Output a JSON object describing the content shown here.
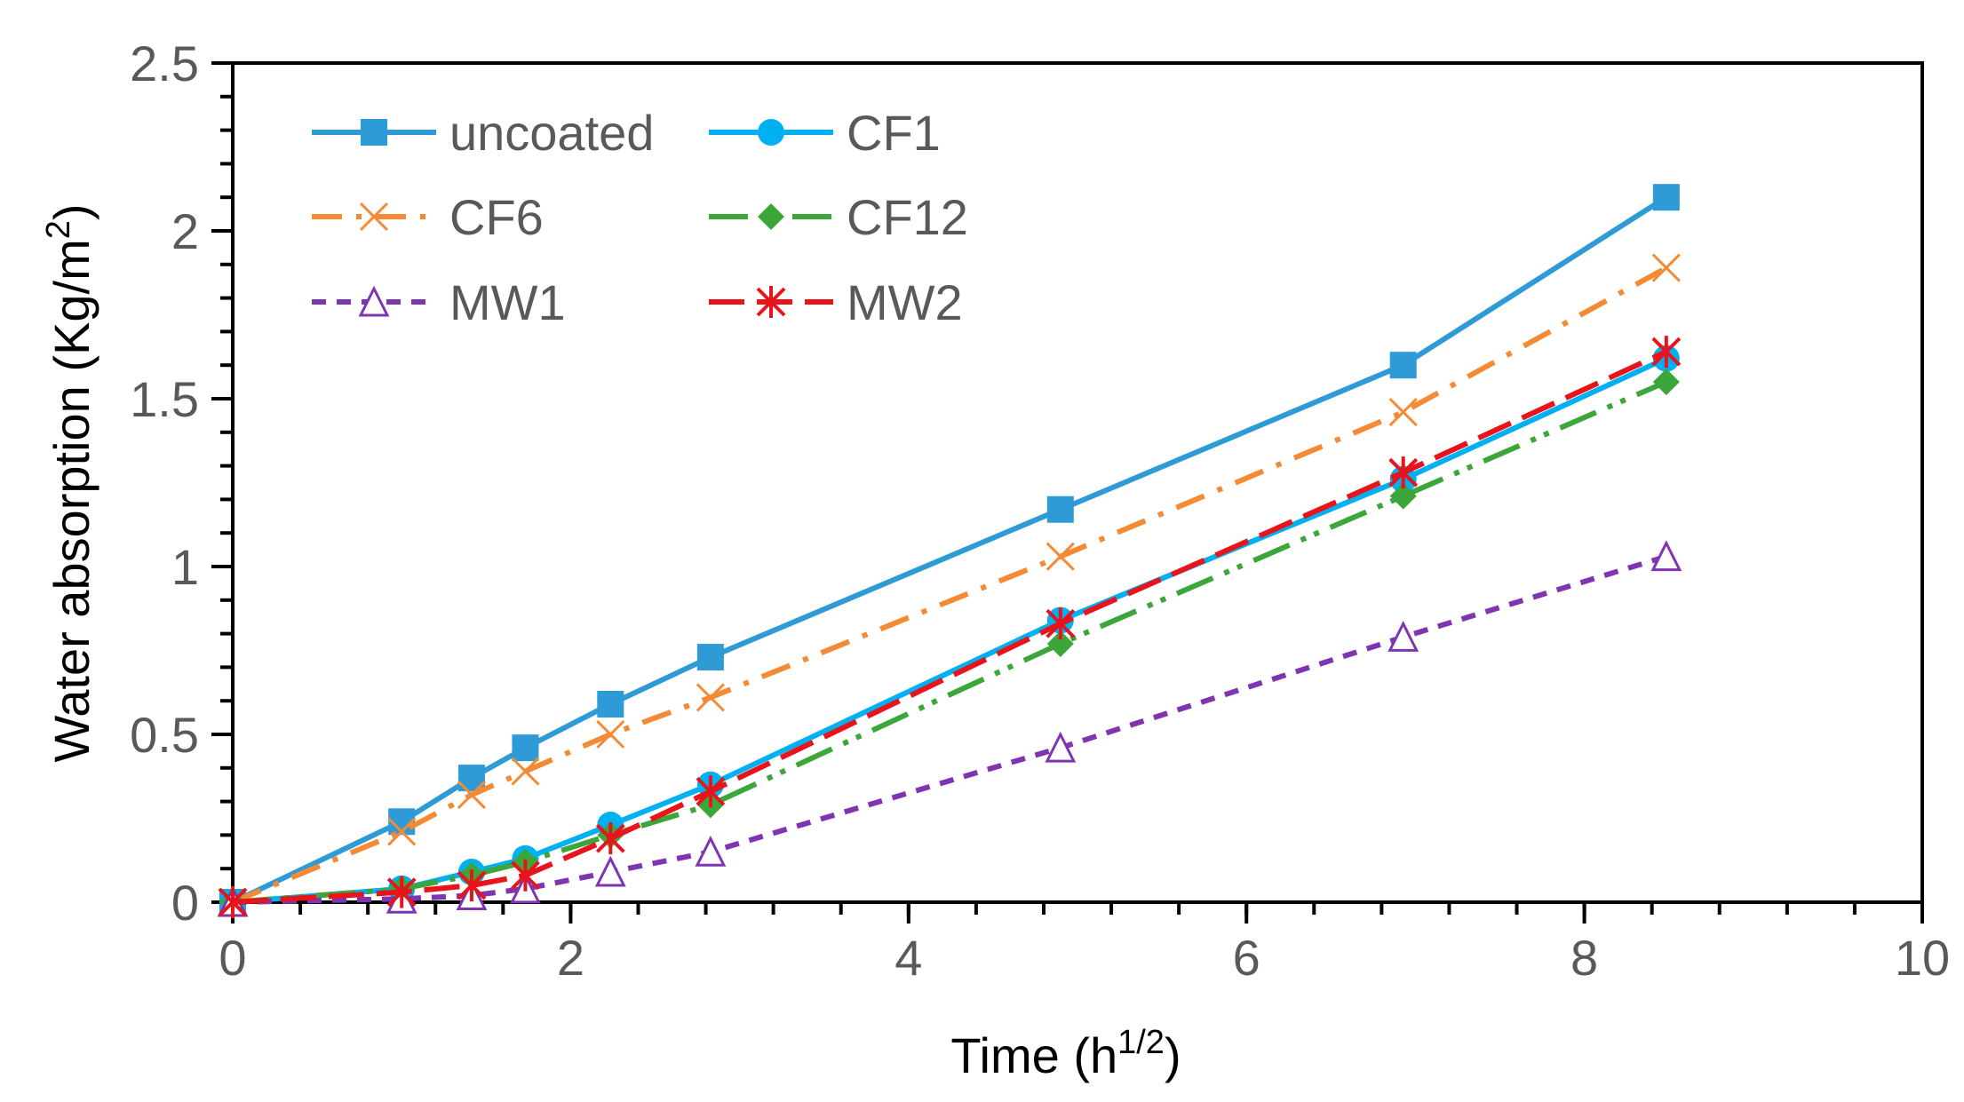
{
  "chart_data": {
    "type": "line",
    "title": "",
    "xlabel": "Time (h",
    "xlabel_sup": "1/2",
    "xlabel_end": ")",
    "ylabel": "Water absorption (Kg/m",
    "ylabel_sup": "2",
    "ylabel_end": ")",
    "xlim": [
      0,
      10
    ],
    "ylim": [
      0,
      2.5
    ],
    "xticks": [
      "0",
      "2",
      "4",
      "6",
      "8",
      "10"
    ],
    "yticks": [
      "0",
      "0.5",
      "1",
      "1.5",
      "2",
      "2.5"
    ],
    "grid": false,
    "legend_position": "top-left",
    "x": [
      0,
      1,
      1.414,
      1.732,
      2.236,
      2.828,
      4.899,
      6.928,
      8.485
    ],
    "series": [
      {
        "name": "uncoated",
        "color": "#2e9bd6",
        "marker": "square",
        "dash": "",
        "values": [
          0,
          0.24,
          0.37,
          0.46,
          0.59,
          0.73,
          1.17,
          1.6,
          2.1
        ]
      },
      {
        "name": "CF1",
        "color": "#00b0f0",
        "marker": "circle",
        "dash": "",
        "values": [
          0,
          0.04,
          0.09,
          0.13,
          0.23,
          0.35,
          0.84,
          1.26,
          1.62
        ]
      },
      {
        "name": "CF6",
        "color": "#f58a35",
        "marker": "x",
        "dash": "34 16 6 16",
        "values": [
          0,
          0.21,
          0.32,
          0.39,
          0.5,
          0.61,
          1.03,
          1.46,
          1.89
        ]
      },
      {
        "name": "CF12",
        "color": "#3da63a",
        "marker": "diamond",
        "dash": "44 14 6 10 6 14",
        "values": [
          0,
          0.04,
          0.08,
          0.12,
          0.2,
          0.29,
          0.77,
          1.21,
          1.55
        ]
      },
      {
        "name": "MW1",
        "color": "#7f35b2",
        "marker": "triangle",
        "dash": "16 12",
        "values": [
          0,
          0.01,
          0.02,
          0.04,
          0.09,
          0.15,
          0.46,
          0.79,
          1.03
        ]
      },
      {
        "name": "MW2",
        "color": "#e8141c",
        "marker": "star",
        "dash": "40 14",
        "values": [
          0,
          0.03,
          0.05,
          0.08,
          0.19,
          0.33,
          0.83,
          1.28,
          1.64
        ]
      }
    ]
  }
}
